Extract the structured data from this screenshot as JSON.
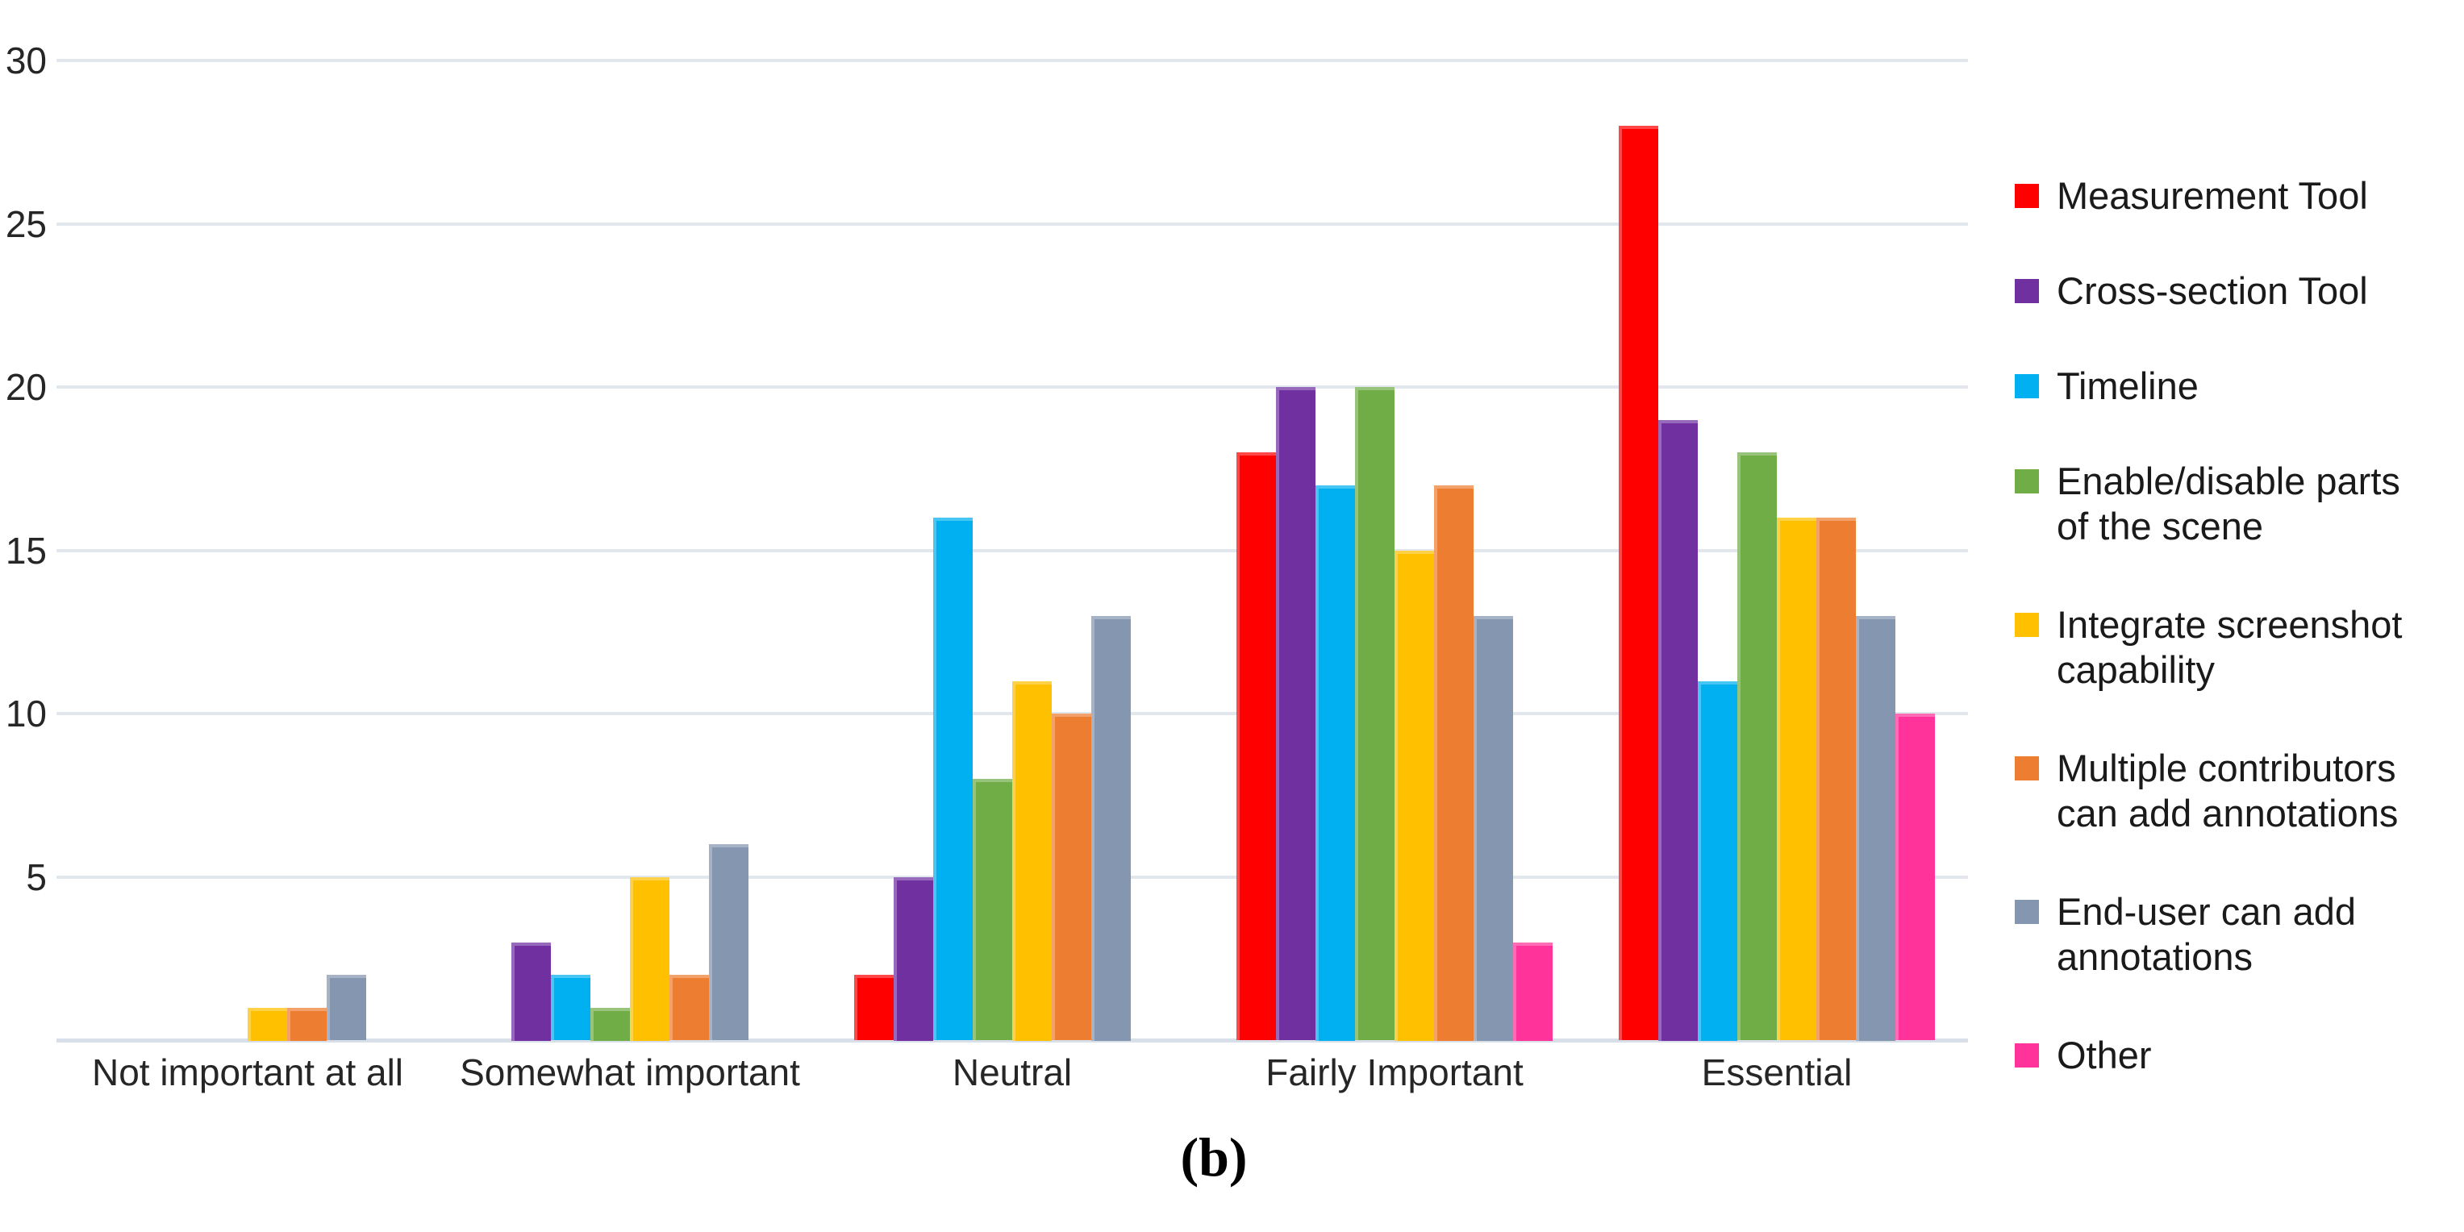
{
  "figure": {
    "caption": "(b)",
    "background": "#ffffff"
  },
  "chart_data": {
    "type": "bar",
    "title": "",
    "xlabel": "",
    "ylabel": "",
    "categories": [
      "Not important at all",
      "Somewhat important",
      "Neutral",
      "Fairly Important",
      "Essential"
    ],
    "series": [
      {
        "name": "Measurement Tool",
        "color": "#FF0000",
        "values": [
          0,
          0,
          2,
          18,
          28
        ],
        "legend_lines": [
          "Measurement Tool"
        ]
      },
      {
        "name": "Cross-section Tool",
        "color": "#7030A0",
        "values": [
          0,
          3,
          5,
          20,
          19
        ],
        "legend_lines": [
          "Cross-section Tool"
        ]
      },
      {
        "name": "Timeline",
        "color": "#00B0F0",
        "values": [
          0,
          2,
          16,
          17,
          11
        ],
        "legend_lines": [
          "Timeline"
        ]
      },
      {
        "name": "Enable/disable parts of the scene",
        "color": "#70AD47",
        "values": [
          0,
          1,
          8,
          20,
          18
        ],
        "legend_lines": [
          "Enable/disable parts",
          "of the scene"
        ]
      },
      {
        "name": "Integrate screenshot capability",
        "color": "#FFC000",
        "values": [
          1,
          5,
          11,
          15,
          16
        ],
        "legend_lines": [
          "Integrate screenshot",
          "capability"
        ]
      },
      {
        "name": "Multiple contributors can add annotations",
        "color": "#ED7D31",
        "values": [
          1,
          2,
          10,
          17,
          16
        ],
        "legend_lines": [
          "Multiple contributors",
          "can add annotations"
        ]
      },
      {
        "name": "End-user can add annotations",
        "color": "#8496B0",
        "values": [
          2,
          6,
          13,
          13,
          13
        ],
        "legend_lines": [
          "End-user can add",
          "annotations"
        ]
      },
      {
        "name": "Other",
        "color": "#FF3399",
        "values": [
          0,
          0,
          0,
          3,
          10
        ],
        "legend_lines": [
          "Other"
        ]
      }
    ],
    "ylim": [
      0,
      30
    ],
    "yticks": [
      5,
      10,
      15,
      20,
      25,
      30
    ],
    "grid": true,
    "legend_position": "right"
  },
  "colors": {
    "gridline": "#E2E7EE",
    "baseline": "#D9DFE8",
    "text": "#262626"
  }
}
